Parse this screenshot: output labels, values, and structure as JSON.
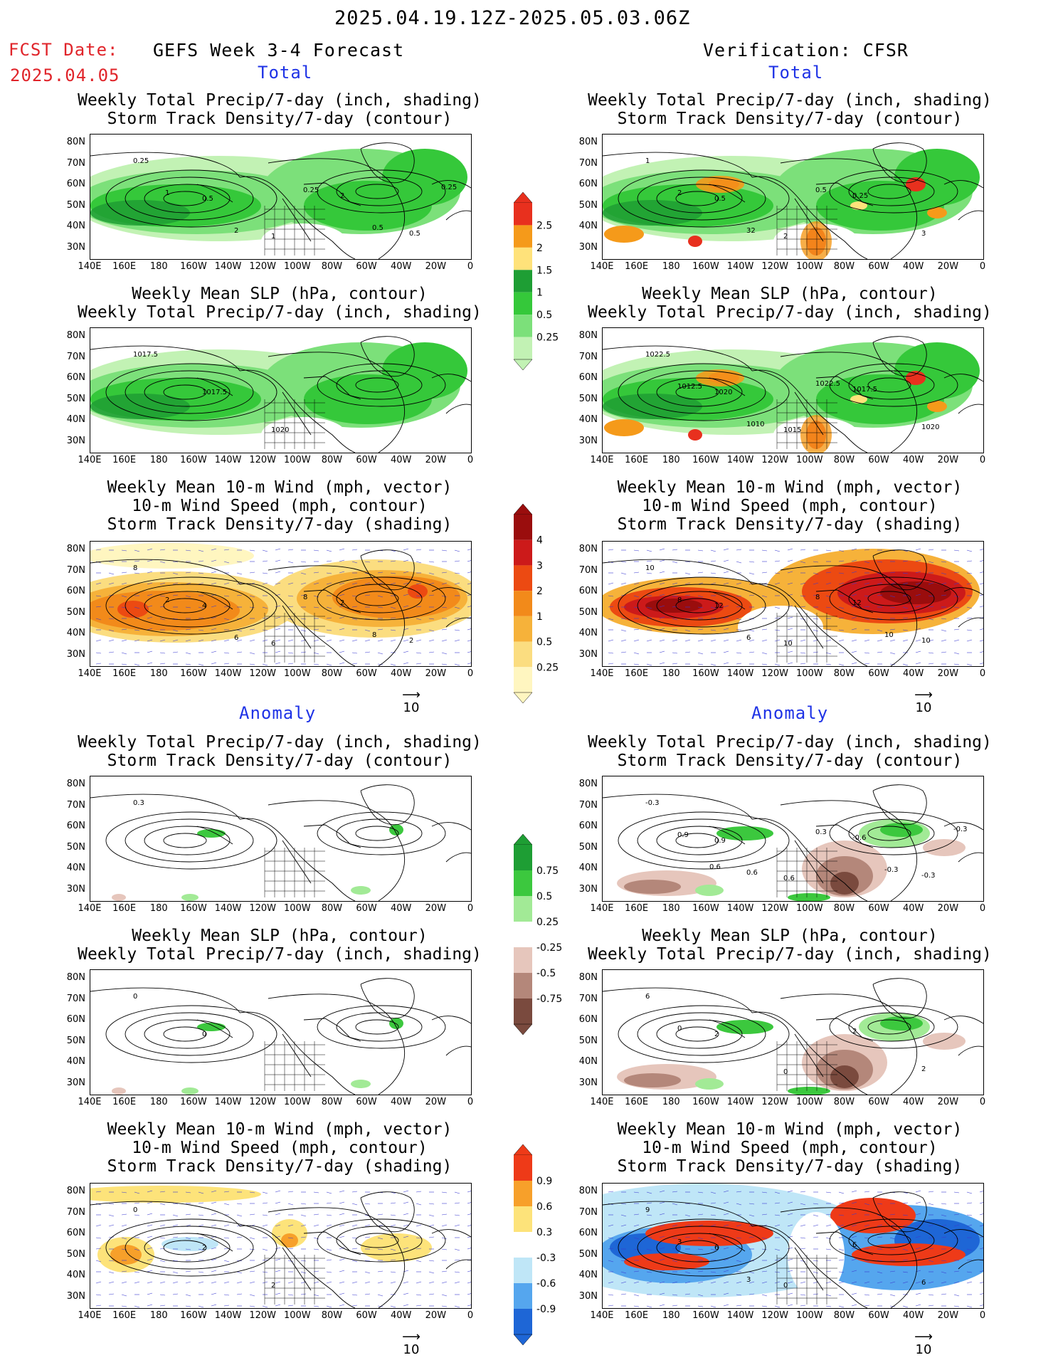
{
  "header": {
    "date_range": "2025.04.19.12Z-2025.05.03.06Z",
    "fcst_label": "FCST Date:",
    "fcst_date": "2025.04.05",
    "forecast_title": "GEFS Week 3-4 Forecast",
    "verification_title": "Verification: CFSR"
  },
  "sections": {
    "total": "Total",
    "anomaly": "Anomaly"
  },
  "titles": {
    "precip_storm": [
      "Weekly Total Precip/7-day (inch, shading)",
      "Storm Track Density/7-day (contour)"
    ],
    "slp_precip": [
      "Weekly Mean SLP (hPa, contour)",
      "Weekly Total Precip/7-day (inch, shading)"
    ],
    "wind_storm": [
      "Weekly Mean 10-m Wind (mph, vector)",
      "10-m Wind Speed (mph, contour)",
      "Storm Track Density/7-day (shading)"
    ]
  },
  "axes": {
    "lat_labels": [
      "80N",
      "70N",
      "60N",
      "50N",
      "40N",
      "30N"
    ],
    "lon_labels": [
      "140E",
      "160E",
      "180",
      "160W",
      "140W",
      "120W",
      "100W",
      "80W",
      "60W",
      "40W",
      "20W",
      "0"
    ]
  },
  "colorbars": {
    "precip_total": {
      "labels": [
        "2.5",
        "2",
        "1.5",
        "1",
        "0.5",
        "0.25"
      ],
      "colors": [
        "#e8301e",
        "#f59a1a",
        "#ffe27a",
        "#1e9e34",
        "#35c83a",
        "#7ce07a",
        "#c2f2b4"
      ]
    },
    "storm_total": {
      "labels": [
        "4",
        "3",
        "2",
        "1",
        "0.5",
        "0.25"
      ],
      "colors": [
        "#9a0d0d",
        "#cc1a1a",
        "#ec4a12",
        "#f28a1a",
        "#f6b23a",
        "#fbdd80",
        "#fff6c0"
      ]
    },
    "precip_anom": {
      "labels": [
        "0.75",
        "0.5",
        "0.25",
        "-0.25",
        "-0.5",
        "-0.75"
      ],
      "colors": [
        "#1e9e34",
        "#3cc83e",
        "#a2ea96",
        "#ffffff",
        "#e6c6bc",
        "#b4877a",
        "#7a4a3e"
      ]
    },
    "storm_anom": {
      "labels": [
        "0.9",
        "0.6",
        "0.3",
        "-0.3",
        "-0.6",
        "-0.9"
      ],
      "colors": [
        "#ee3a18",
        "#f7a02a",
        "#fde37a",
        "#ffffff",
        "#bfe6f7",
        "#55a6ee",
        "#1e66d6"
      ]
    }
  },
  "vector_ref": "10",
  "contour_labels": {
    "f_total_precip": [
      "0.25",
      "0.5",
      "1",
      "2",
      "0.5",
      "1",
      "2",
      "0.25",
      "0.5",
      "0.25"
    ],
    "v_total_precip": [
      "1",
      "0.5",
      "2",
      "0.25",
      "3",
      "2",
      "32",
      "0.5"
    ],
    "f_total_slp": [
      "1017.5",
      "1017.5",
      "1020"
    ],
    "v_total_slp": [
      "1022.5",
      "1020",
      "1015",
      "1017.5",
      "1020",
      "1012.5",
      "1010",
      "1022.5"
    ],
    "f_total_wind": [
      "8",
      "4",
      "6",
      "2",
      "2",
      "2",
      "6",
      "8",
      "8"
    ],
    "v_total_wind": [
      "10",
      "12",
      "10",
      "12",
      "10",
      "8",
      "6",
      "8",
      "10"
    ],
    "f_anom_precip": [
      "0.3"
    ],
    "v_anom_precip": [
      "-0.3",
      "0.9",
      "0.6",
      "-0.6",
      "-0.3",
      "0.9",
      "0.6",
      "0.3",
      "-0.3",
      "-0.3",
      "0.6"
    ],
    "f_anom_slp": [
      "0",
      "0"
    ],
    "v_anom_slp": [
      "6",
      "2",
      "0",
      "2",
      "2",
      "0"
    ],
    "f_anom_wind": [
      "0",
      "2",
      "2"
    ],
    "v_anom_wind": [
      "9",
      "6",
      "0",
      "6",
      "6",
      "3",
      "3"
    ]
  }
}
